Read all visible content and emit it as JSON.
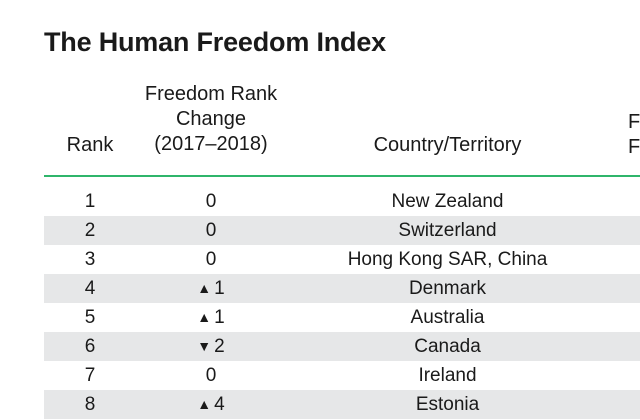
{
  "title": "The Human Freedom Index",
  "headers": {
    "rank": "Rank",
    "change_line1": "Freedom Rank",
    "change_line2": "Change",
    "change_line3": "(2017–2018)",
    "country": "Country/Territory",
    "next_line1": "F",
    "next_line2": "F"
  },
  "colors": {
    "rule": "#2fb56b",
    "shade": "#e6e7e8"
  },
  "rows": [
    {
      "rank": "1",
      "arrow": "",
      "change": "0",
      "country": "New Zealand",
      "shaded": false
    },
    {
      "rank": "2",
      "arrow": "",
      "change": "0",
      "country": "Switzerland",
      "shaded": true
    },
    {
      "rank": "3",
      "arrow": "",
      "change": "0",
      "country": "Hong Kong SAR, China",
      "shaded": false
    },
    {
      "rank": "4",
      "arrow": "▲",
      "change": "1",
      "country": "Denmark",
      "shaded": true
    },
    {
      "rank": "5",
      "arrow": "▲",
      "change": "1",
      "country": "Australia",
      "shaded": false
    },
    {
      "rank": "6",
      "arrow": "▼",
      "change": "2",
      "country": "Canada",
      "shaded": true
    },
    {
      "rank": "7",
      "arrow": "",
      "change": "0",
      "country": "Ireland",
      "shaded": false
    },
    {
      "rank": "8",
      "arrow": "▲",
      "change": "4",
      "country": "Estonia",
      "shaded": true
    }
  ]
}
